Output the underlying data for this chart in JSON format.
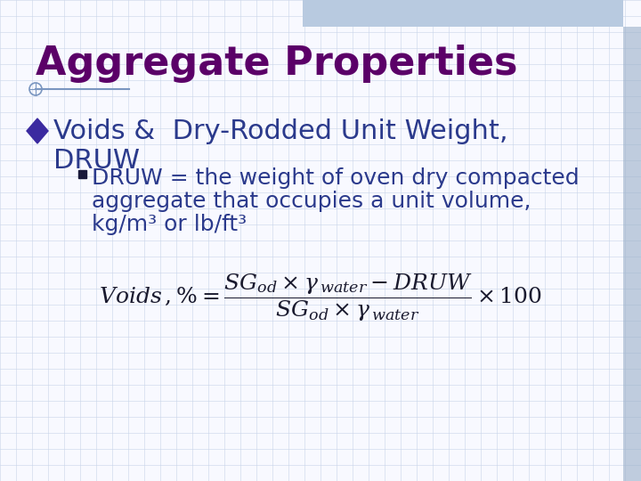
{
  "title": "Aggregate Properties",
  "title_color": "#5B0068",
  "title_fontsize": 32,
  "bg_color": "#F8F9FF",
  "grid_color": "#C8D4E8",
  "bullet1_line1": "Voids &  Dry-Rodded Unit Weight,",
  "bullet1_line2": "DRUW",
  "bullet1_color": "#2B3A8C",
  "bullet1_fontsize": 22,
  "diamond_color": "#3B2AA0",
  "sub_text_line1": "DRUW = the weight of oven dry compacted",
  "sub_text_line2": "aggregate that occupies a unit volume,",
  "sub_text_line3": "kg/m³ or lb/ft³",
  "sub_color": "#2B3A8C",
  "sub_fontsize": 18,
  "square_color": "#1A1A3A",
  "formula_color": "#1A1A2E",
  "accent_line_color": "#7A96C0",
  "top_bar_color": "#B8CAE0",
  "right_bar_color": "#9AAFC8"
}
